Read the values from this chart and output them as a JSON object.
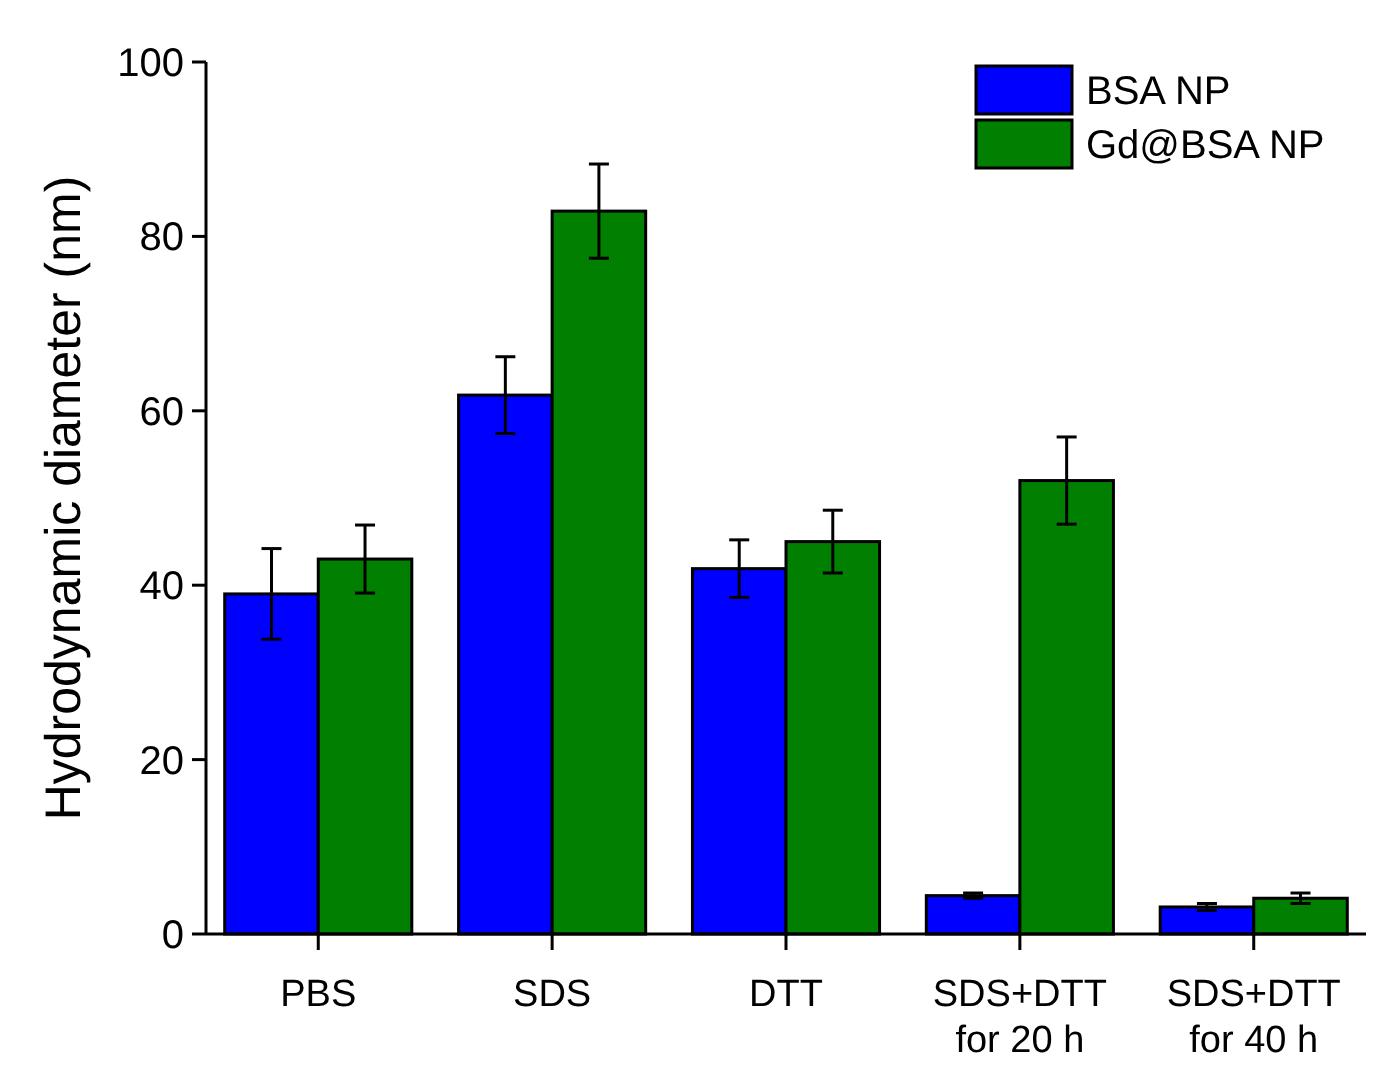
{
  "chart_data": {
    "type": "bar",
    "ylabel": "Hydrodynamic diameter (nm)",
    "categories": [
      "PBS",
      "SDS",
      "DTT",
      "SDS+DTT\nfor 20 h",
      "SDS+DTT\nfor 40 h"
    ],
    "series": [
      {
        "name": "BSA NP",
        "color": "#0000ff",
        "values": [
          39.0,
          61.8,
          41.9,
          4.4,
          3.1
        ],
        "errors": [
          5.2,
          4.4,
          3.3,
          0.3,
          0.4
        ]
      },
      {
        "name": "Gd@BSA NP",
        "color": "#007f00",
        "values": [
          43.0,
          82.9,
          45.0,
          52.0,
          4.1
        ],
        "errors": [
          3.9,
          5.4,
          3.6,
          5.0,
          0.6
        ]
      }
    ],
    "ylim": [
      0,
      100
    ],
    "yticks": [
      0,
      20,
      40,
      60,
      80,
      100
    ],
    "legend": "top right",
    "grid": false
  }
}
